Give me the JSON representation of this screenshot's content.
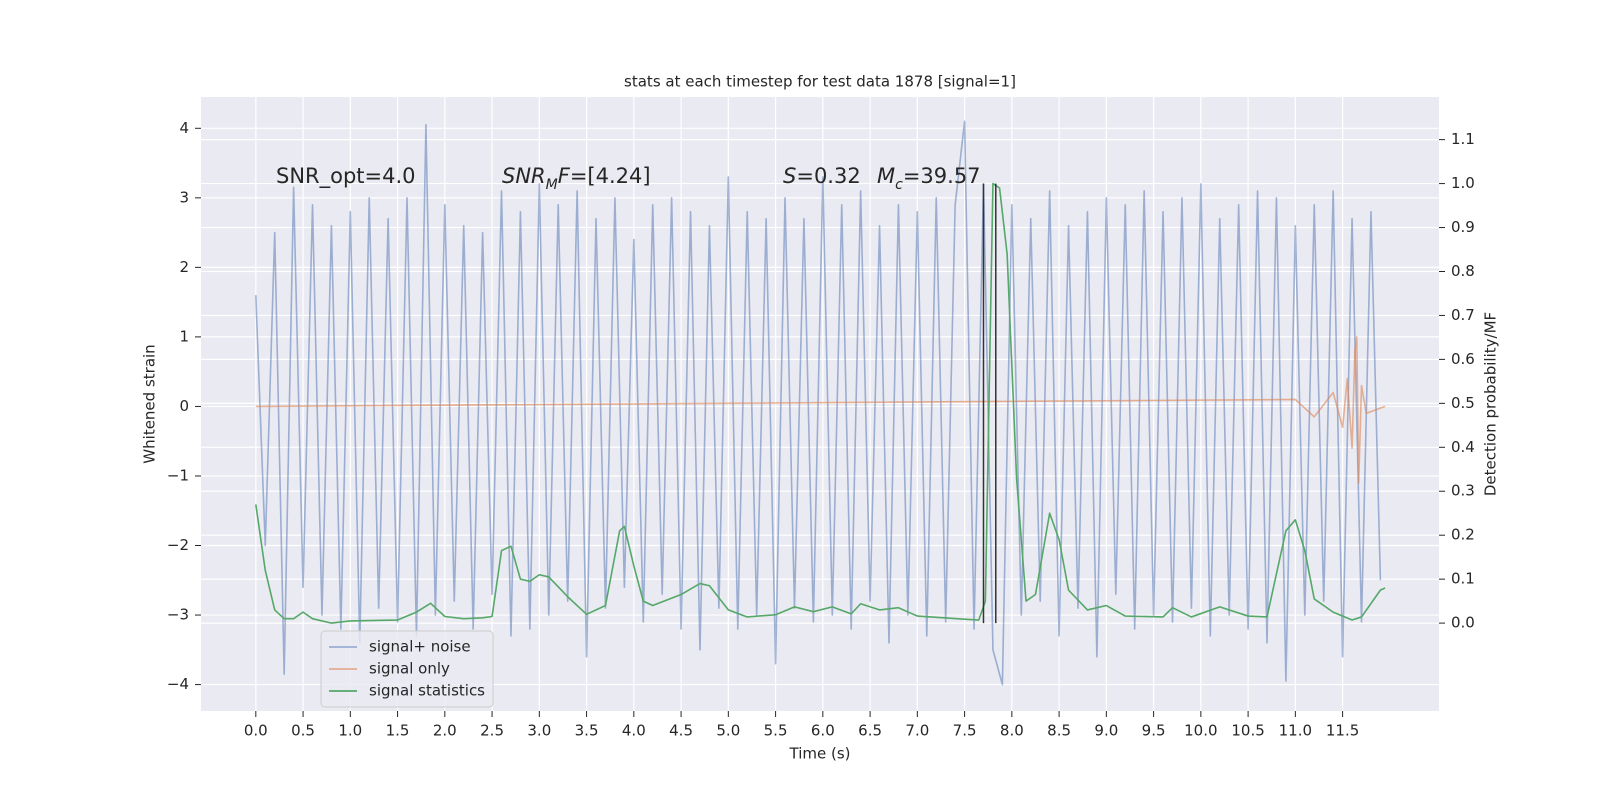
{
  "chart_data": {
    "type": "line",
    "title": "stats at each timestep for test data 1878 [signal=1]",
    "xlabel": "Time (s)",
    "ylabel": "Whitened strain",
    "y2label": "Detection probability/MF",
    "xlim": [
      -0.58,
      12.52
    ],
    "ylim": [
      -4.38,
      4.45
    ],
    "y2lim": [
      -0.2,
      1.197
    ],
    "xticks": [
      {
        "value": 0,
        "label": "0.0"
      },
      0.5,
      {
        "value": 1,
        "label": "1.0"
      },
      1.5,
      {
        "value": 2,
        "label": "2.0"
      },
      2.5,
      {
        "value": 3,
        "label": "3.0"
      },
      3.5,
      {
        "value": 4,
        "label": "4.0"
      },
      4.5,
      {
        "value": 5,
        "label": "5.0"
      },
      5.5,
      {
        "value": 6,
        "label": "6.0"
      },
      6.5,
      {
        "value": 7,
        "label": "7.0"
      },
      7.5,
      {
        "value": 8,
        "label": "8.0"
      },
      8.5,
      {
        "value": 9,
        "label": "9.0"
      },
      9.5,
      {
        "value": 10,
        "label": "10.0"
      },
      10.5,
      {
        "value": 11,
        "label": "11.0"
      },
      11.5
    ],
    "yticks": [
      {
        "value": -4,
        "label": "−4"
      },
      {
        "value": -3,
        "label": "−3"
      },
      {
        "value": -2,
        "label": "−2"
      },
      {
        "value": -1,
        "label": "−1"
      },
      0,
      1,
      2,
      3,
      4
    ],
    "y2ticks": [
      {
        "value": 0,
        "label": "0.0"
      },
      0.1,
      0.2,
      0.3,
      0.4,
      0.5,
      0.6,
      0.7,
      0.8,
      0.9,
      {
        "value": 1,
        "label": "1.0"
      },
      1.1
    ],
    "grid": true,
    "legend": "lower left",
    "series": [
      {
        "name": "signal+ noise",
        "color": "#4c72b0",
        "opacity": 0.5,
        "x": [
          0.0,
          0.1,
          0.2,
          0.3,
          0.4,
          0.5,
          0.6,
          0.7,
          0.8,
          0.9,
          1.0,
          1.1,
          1.2,
          1.3,
          1.4,
          1.5,
          1.6,
          1.7,
          1.8,
          1.9,
          2.0,
          2.1,
          2.2,
          2.3,
          2.4,
          2.5,
          2.6,
          2.7,
          2.8,
          2.9,
          3.0,
          3.1,
          3.2,
          3.3,
          3.4,
          3.5,
          3.6,
          3.7,
          3.8,
          3.9,
          4.0,
          4.1,
          4.2,
          4.3,
          4.4,
          4.5,
          4.6,
          4.7,
          4.8,
          4.9,
          5.0,
          5.1,
          5.2,
          5.3,
          5.4,
          5.5,
          5.6,
          5.7,
          5.8,
          5.9,
          6.0,
          6.1,
          6.2,
          6.3,
          6.4,
          6.5,
          6.6,
          6.7,
          6.8,
          6.9,
          7.0,
          7.1,
          7.2,
          7.3,
          7.4,
          7.5,
          7.6,
          7.7,
          7.8,
          7.9,
          8.0,
          8.1,
          8.2,
          8.3,
          8.4,
          8.5,
          8.6,
          8.7,
          8.8,
          8.9,
          9.0,
          9.1,
          9.2,
          9.3,
          9.4,
          9.5,
          9.6,
          9.7,
          9.8,
          9.9,
          10.0,
          10.1,
          10.2,
          10.3,
          10.4,
          10.5,
          10.6,
          10.7,
          10.8,
          10.9,
          11.0,
          11.1,
          11.2,
          11.3,
          11.4,
          11.5,
          11.6,
          11.7,
          11.8,
          11.9
        ],
        "values": [
          1.6,
          -2.0,
          2.5,
          -3.85,
          3.15,
          -2.6,
          2.9,
          -3.0,
          2.6,
          -3.2,
          2.8,
          -3.4,
          3.0,
          -2.9,
          2.7,
          -3.1,
          3.0,
          -3.3,
          4.05,
          -3.0,
          2.9,
          -2.8,
          2.6,
          -3.2,
          2.5,
          -2.7,
          3.1,
          -3.3,
          2.8,
          -3.2,
          3.2,
          -3.0,
          2.9,
          -2.8,
          3.1,
          -3.6,
          2.7,
          -2.9,
          3.0,
          -2.6,
          2.4,
          -3.1,
          2.9,
          -2.7,
          3.0,
          -3.2,
          2.8,
          -3.5,
          2.6,
          -2.9,
          3.3,
          -3.2,
          2.8,
          -3.0,
          2.7,
          -3.7,
          3.0,
          -2.9,
          2.7,
          -3.1,
          3.3,
          -3.0,
          2.9,
          -3.2,
          3.1,
          -2.8,
          2.6,
          -3.4,
          2.9,
          -3.0,
          2.8,
          -3.3,
          3.0,
          -3.1,
          2.9,
          4.1,
          -3.2,
          3.2,
          -3.5,
          -4.0,
          2.9,
          -3.0,
          2.7,
          -2.8,
          3.1,
          -3.3,
          2.6,
          -2.9,
          2.8,
          -3.6,
          3.0,
          -2.7,
          2.9,
          -3.2,
          3.1,
          -3.0,
          2.8,
          -3.1,
          3.0,
          -2.9,
          3.2,
          -3.3,
          2.7,
          -3.0,
          2.9,
          -3.2,
          3.1,
          -3.4,
          3.0,
          -3.95,
          2.6,
          -3.0,
          2.9,
          -2.8,
          3.1,
          -3.6,
          2.7,
          -3.1,
          2.8,
          -2.5
        ]
      },
      {
        "name": "signal only",
        "color": "#dd8452",
        "opacity": 0.6,
        "x": [
          0.0,
          11.0,
          11.2,
          11.4,
          11.5,
          11.55,
          11.6,
          11.63,
          11.65,
          11.67,
          11.7,
          11.75,
          11.95
        ],
        "values": [
          0,
          0.1,
          -0.15,
          0.2,
          -0.3,
          0.4,
          -0.6,
          0.8,
          1.0,
          -1.1,
          0.3,
          -0.1,
          0
        ]
      },
      {
        "name": "signal statistics",
        "color": "#55a868",
        "opacity": 1,
        "axis": "y2",
        "x": [
          0,
          0.1,
          0.2,
          0.3,
          0.4,
          0.5,
          0.6,
          0.8,
          1.0,
          1.5,
          1.7,
          1.85,
          2.0,
          2.2,
          2.4,
          2.5,
          2.6,
          2.7,
          2.8,
          2.9,
          3.0,
          3.1,
          3.3,
          3.5,
          3.7,
          3.85,
          3.9,
          4.0,
          4.1,
          4.2,
          4.5,
          4.7,
          4.8,
          5.0,
          5.2,
          5.5,
          5.7,
          5.9,
          6.1,
          6.3,
          6.4,
          6.6,
          6.8,
          7.0,
          7.5,
          7.65,
          7.72,
          7.8,
          7.87,
          7.95,
          8.05,
          8.15,
          8.25,
          8.4,
          8.5,
          8.6,
          8.8,
          9.0,
          9.2,
          9.6,
          9.7,
          9.9,
          10.2,
          10.5,
          10.7,
          10.9,
          11.0,
          11.1,
          11.2,
          11.4,
          11.6,
          11.7,
          11.9,
          11.95
        ],
        "values": [
          0.27,
          0.12,
          0.03,
          0.01,
          0.01,
          0.025,
          0.01,
          0.0,
          0.005,
          0.007,
          0.025,
          0.045,
          0.015,
          0.01,
          0.012,
          0.015,
          0.165,
          0.175,
          0.1,
          0.095,
          0.11,
          0.105,
          0.06,
          0.02,
          0.04,
          0.21,
          0.22,
          0.13,
          0.05,
          0.04,
          0.065,
          0.09,
          0.085,
          0.03,
          0.014,
          0.019,
          0.037,
          0.026,
          0.037,
          0.021,
          0.044,
          0.03,
          0.035,
          0.016,
          0.009,
          0.007,
          0.05,
          1.0,
          0.99,
          0.84,
          0.33,
          0.05,
          0.065,
          0.25,
          0.19,
          0.075,
          0.03,
          0.04,
          0.016,
          0.014,
          0.035,
          0.014,
          0.037,
          0.016,
          0.014,
          0.21,
          0.235,
          0.165,
          0.055,
          0.025,
          0.007,
          0.014,
          0.075,
          0.08
        ]
      }
    ],
    "vlines": {
      "x": [
        7.7,
        7.83
      ],
      "ymin": 0,
      "ymax": 1.0,
      "axis": "y2",
      "color": "#333333"
    },
    "annotations": [
      [
        {
          "t": "SNR_opt=4.0"
        }
      ],
      [
        {
          "t": "SNR",
          "style": "italic"
        },
        {
          "t": "M",
          "style": "italic-sub"
        },
        {
          "t": "F",
          "style": "italic"
        },
        {
          "t": "=[4.24]"
        }
      ],
      [
        {
          "t": "S",
          "style": "italic"
        },
        {
          "t": "=0.32"
        }
      ],
      [
        {
          "t": "M",
          "style": "italic"
        },
        {
          "t": "c",
          "style": "italic-sub"
        },
        {
          "t": "=39.57"
        }
      ]
    ]
  }
}
